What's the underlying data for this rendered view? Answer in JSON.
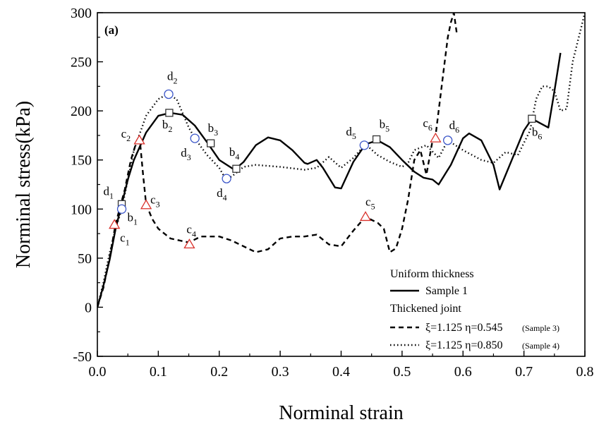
{
  "chart_data": {
    "type": "line",
    "panel_label": "(a)",
    "xlabel": "Norminal strain",
    "ylabel": "Norminal stress(kPa)",
    "xlim": [
      0.0,
      0.8
    ],
    "ylim": [
      -50,
      300
    ],
    "xticks": [
      "0.0",
      "0.1",
      "0.2",
      "0.3",
      "0.4",
      "0.5",
      "0.6",
      "0.7",
      "0.8"
    ],
    "yticks": [
      "-50",
      "0",
      "50",
      "100",
      "150",
      "200",
      "250",
      "300"
    ],
    "grid": false,
    "legend_position": "bottom-right",
    "legend": {
      "group1": "Uniform thickness",
      "group2": "Thickened joint",
      "sample1": "Sample 1",
      "sample3_params": "ξ=1.125  η=0.545",
      "sample3_tag": "(Sample 3)",
      "sample4_params": "ξ=1.125  η=0.850",
      "sample4_tag": "(Sample 4)"
    },
    "series": [
      {
        "name": "Sample 1",
        "style": "solid",
        "marker": "square",
        "marker_color": "#333333",
        "x": [
          0.0,
          0.01,
          0.02,
          0.03,
          0.04,
          0.05,
          0.06,
          0.08,
          0.1,
          0.12,
          0.14,
          0.16,
          0.18,
          0.2,
          0.225,
          0.24,
          0.26,
          0.28,
          0.3,
          0.32,
          0.34,
          0.345,
          0.36,
          0.37,
          0.39,
          0.4,
          0.42,
          0.44,
          0.46,
          0.48,
          0.5,
          0.52,
          0.535,
          0.55,
          0.56,
          0.58,
          0.6,
          0.61,
          0.63,
          0.65,
          0.66,
          0.68,
          0.7,
          0.713,
          0.725,
          0.74,
          0.75,
          0.76
        ],
        "y": [
          0,
          22,
          48,
          80,
          105,
          130,
          150,
          178,
          195,
          198,
          196,
          185,
          168,
          150,
          140,
          148,
          165,
          173,
          170,
          160,
          147,
          146,
          150,
          142,
          122,
          121,
          148,
          166,
          170,
          163,
          150,
          138,
          132,
          130,
          125,
          145,
          172,
          177,
          170,
          145,
          120,
          150,
          180,
          192,
          188,
          183,
          220,
          259
        ]
      },
      {
        "name": "ξ=1.125  η=0.545 (Sample 3)",
        "style": "dashed",
        "marker": "triangle",
        "marker_color": "#d9312b",
        "x": [
          0.0,
          0.01,
          0.02,
          0.03,
          0.045,
          0.055,
          0.065,
          0.07,
          0.075,
          0.08,
          0.09,
          0.1,
          0.12,
          0.15,
          0.17,
          0.2,
          0.22,
          0.26,
          0.28,
          0.3,
          0.32,
          0.34,
          0.36,
          0.38,
          0.4,
          0.42,
          0.44,
          0.46,
          0.47,
          0.48,
          0.49,
          0.5,
          0.51,
          0.52,
          0.53,
          0.54,
          0.55,
          0.555,
          0.56,
          0.57,
          0.575,
          0.58,
          0.585,
          0.59
        ],
        "y": [
          0,
          20,
          50,
          85,
          120,
          150,
          170,
          168,
          135,
          105,
          90,
          80,
          70,
          66,
          72,
          72,
          68,
          56,
          59,
          70,
          72,
          72,
          74,
          64,
          62,
          78,
          92,
          86,
          80,
          56,
          60,
          80,
          110,
          150,
          160,
          135,
          170,
          175,
          200,
          250,
          275,
          290,
          300,
          278
        ]
      },
      {
        "name": "ξ=1.125  η=0.850 (Sample 4)",
        "style": "dotted",
        "marker": "circle",
        "marker_color": "#3a55c8",
        "x": [
          0.0,
          0.01,
          0.02,
          0.03,
          0.04,
          0.05,
          0.06,
          0.08,
          0.1,
          0.115,
          0.13,
          0.15,
          0.16,
          0.18,
          0.2,
          0.21,
          0.22,
          0.24,
          0.26,
          0.3,
          0.34,
          0.36,
          0.38,
          0.4,
          0.42,
          0.44,
          0.46,
          0.48,
          0.5,
          0.51,
          0.52,
          0.54,
          0.56,
          0.575,
          0.6,
          0.63,
          0.65,
          0.67,
          0.69,
          0.71,
          0.72,
          0.73,
          0.74,
          0.75,
          0.76,
          0.77,
          0.78,
          0.8
        ],
        "y": [
          0,
          25,
          55,
          80,
          100,
          130,
          160,
          195,
          212,
          217,
          212,
          183,
          172,
          155,
          142,
          131,
          133,
          143,
          145,
          143,
          140,
          142,
          153,
          142,
          152,
          166,
          155,
          148,
          143,
          147,
          160,
          165,
          152,
          170,
          160,
          150,
          147,
          158,
          155,
          180,
          212,
          225,
          225,
          220,
          200,
          202,
          250,
          300
        ]
      }
    ],
    "annotations": [
      {
        "series": 0,
        "main": "b",
        "sub": "1",
        "x": 0.04,
        "y": 105,
        "dx": 8,
        "dy": 24
      },
      {
        "series": 0,
        "main": "b",
        "sub": "2",
        "x": 0.118,
        "y": 198,
        "dx": -10,
        "dy": 22
      },
      {
        "series": 0,
        "main": "b",
        "sub": "3",
        "x": 0.186,
        "y": 167,
        "dx": -4,
        "dy": -16
      },
      {
        "series": 0,
        "main": "b",
        "sub": "4",
        "x": 0.228,
        "y": 141,
        "dx": -10,
        "dy": -18
      },
      {
        "series": 0,
        "main": "b",
        "sub": "5",
        "x": 0.458,
        "y": 171,
        "dx": 4,
        "dy": -16
      },
      {
        "series": 0,
        "main": "b",
        "sub": "6",
        "x": 0.713,
        "y": 192,
        "dx": 0,
        "dy": 24
      },
      {
        "series": 1,
        "main": "c",
        "sub": "1",
        "x": 0.028,
        "y": 84,
        "dx": 8,
        "dy": 24
      },
      {
        "series": 1,
        "main": "c",
        "sub": "2",
        "x": 0.069,
        "y": 170,
        "dx": -26,
        "dy": -4
      },
      {
        "series": 1,
        "main": "c",
        "sub": "3",
        "x": 0.08,
        "y": 104,
        "dx": 6,
        "dy": -2
      },
      {
        "series": 1,
        "main": "c",
        "sub": "4",
        "x": 0.151,
        "y": 64,
        "dx": -4,
        "dy": -16
      },
      {
        "series": 1,
        "main": "c",
        "sub": "5",
        "x": 0.44,
        "y": 92,
        "dx": 0,
        "dy": -16
      },
      {
        "series": 1,
        "main": "c",
        "sub": "6",
        "x": 0.555,
        "y": 172,
        "dx": -18,
        "dy": -16
      },
      {
        "series": 2,
        "main": "d",
        "sub": "1",
        "x": 0.04,
        "y": 100,
        "dx": -26,
        "dy": -20
      },
      {
        "series": 2,
        "main": "d",
        "sub": "2",
        "x": 0.117,
        "y": 217,
        "dx": -2,
        "dy": -20
      },
      {
        "series": 2,
        "main": "d",
        "sub": "3",
        "x": 0.16,
        "y": 172,
        "dx": -20,
        "dy": 26
      },
      {
        "series": 2,
        "main": "d",
        "sub": "4",
        "x": 0.212,
        "y": 131,
        "dx": -14,
        "dy": 26
      },
      {
        "series": 2,
        "main": "d",
        "sub": "5",
        "x": 0.438,
        "y": 165,
        "dx": -26,
        "dy": -14
      },
      {
        "series": 2,
        "main": "d",
        "sub": "6",
        "x": 0.575,
        "y": 170,
        "dx": 2,
        "dy": -16
      }
    ]
  }
}
